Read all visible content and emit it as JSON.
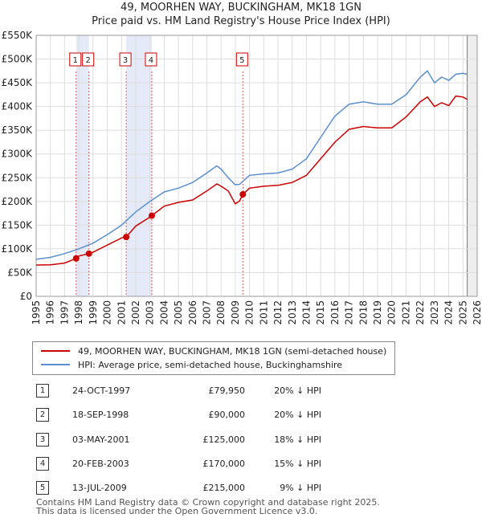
{
  "title": "49, MOORHEN WAY, BUCKINGHAM, MK18 1GN",
  "subtitle": "Price paid vs. HM Land Registry's House Price Index (HPI)",
  "chart_data": {
    "type": "line",
    "xlim": [
      1995,
      2026
    ],
    "ylim": [
      0,
      550000
    ],
    "y_ticks": [
      0,
      50000,
      100000,
      150000,
      200000,
      250000,
      300000,
      350000,
      400000,
      450000,
      500000,
      550000
    ],
    "y_tick_labels": [
      "£0",
      "£50K",
      "£100K",
      "£150K",
      "£200K",
      "£250K",
      "£300K",
      "£350K",
      "£400K",
      "£450K",
      "£500K",
      "£550K"
    ],
    "x_ticks": [
      1995,
      1996,
      1997,
      1998,
      1999,
      2000,
      2001,
      2002,
      2003,
      2004,
      2005,
      2006,
      2007,
      2008,
      2009,
      2010,
      2011,
      2012,
      2013,
      2014,
      2015,
      2016,
      2017,
      2018,
      2019,
      2020,
      2021,
      2022,
      2023,
      2024,
      2025,
      2026
    ],
    "x_tick_labels": [
      "1995",
      "1996",
      "1997",
      "1998",
      "1999",
      "2000",
      "2001",
      "2002",
      "2003",
      "2004",
      "2005",
      "2006",
      "2007",
      "2008",
      "2009",
      "2010",
      "2011",
      "2012",
      "2013",
      "2014",
      "2015",
      "2016",
      "2017",
      "2018",
      "2019",
      "2020",
      "2021",
      "2022",
      "2023",
      "2024",
      "2025",
      "2026"
    ],
    "grid": true,
    "series": [
      {
        "name": "49, MOORHEN WAY, BUCKINGHAM, MK18 1GN (semi-detached house)",
        "color": "#cc0000",
        "x": [
          1995,
          1996,
          1997,
          1997.81,
          1998,
          1998.71,
          1999,
          2000,
          2001,
          2001.33,
          2002,
          2003,
          2003.13,
          2004,
          2005,
          2006,
          2007,
          2007.7,
          2008,
          2008.5,
          2009,
          2009.3,
          2009.53,
          2010,
          2011,
          2012,
          2013,
          2014,
          2015,
          2016,
          2017,
          2018,
          2019,
          2020,
          2021,
          2022,
          2022.5,
          2023,
          2023.5,
          2024,
          2024.5,
          2025,
          2025.3
        ],
        "y": [
          66000,
          66500,
          70000,
          79950,
          85000,
          90000,
          93000,
          108000,
          123000,
          125000,
          148000,
          167000,
          170000,
          190000,
          198000,
          203000,
          222000,
          237000,
          232000,
          222000,
          195000,
          201000,
          215000,
          228000,
          232000,
          234000,
          240000,
          255000,
          290000,
          325000,
          352000,
          358000,
          355000,
          355000,
          378000,
          410000,
          420000,
          400000,
          408000,
          402000,
          422000,
          420000,
          415000
        ]
      },
      {
        "name": "HPI: Average price, semi-detached house, Buckinghamshire",
        "color": "#5b8fcf",
        "x": [
          1995,
          1996,
          1997,
          1998,
          1999,
          2000,
          2001,
          2002,
          2003,
          2004,
          2005,
          2006,
          2007,
          2007.7,
          2008,
          2008.5,
          2009,
          2009.3,
          2010,
          2011,
          2012,
          2013,
          2014,
          2015,
          2016,
          2017,
          2018,
          2019,
          2020,
          2021,
          2022,
          2022.5,
          2023,
          2023.5,
          2024,
          2024.5,
          2025,
          2025.3
        ],
        "y": [
          78000,
          82000,
          90000,
          100000,
          112000,
          130000,
          150000,
          178000,
          200000,
          220000,
          228000,
          240000,
          260000,
          275000,
          268000,
          250000,
          235000,
          236000,
          255000,
          258000,
          260000,
          268000,
          290000,
          335000,
          380000,
          405000,
          410000,
          405000,
          405000,
          425000,
          462000,
          475000,
          450000,
          462000,
          455000,
          468000,
          470000,
          468000
        ]
      }
    ],
    "sale_markers": [
      {
        "label": "1",
        "x": 1997.81,
        "y": 79950
      },
      {
        "label": "2",
        "x": 1998.71,
        "y": 90000
      },
      {
        "label": "3",
        "x": 2001.33,
        "y": 125000
      },
      {
        "label": "4",
        "x": 2003.13,
        "y": 170000
      },
      {
        "label": "5",
        "x": 2009.53,
        "y": 215000
      }
    ],
    "shaded_periods": [
      [
        1997.81,
        1998.71
      ],
      [
        2001.33,
        2003.13
      ]
    ],
    "forecast_from": 2025.3
  },
  "legend": [
    {
      "label": "49, MOORHEN WAY, BUCKINGHAM, MK18 1GN (semi-detached house)",
      "color": "#cc0000"
    },
    {
      "label": "HPI: Average price, semi-detached house, Buckinghamshire",
      "color": "#5b8fcf"
    }
  ],
  "sales": [
    {
      "num": "1",
      "date": "24-OCT-1997",
      "price": "£79,950",
      "hpi": "20% ↓ HPI"
    },
    {
      "num": "2",
      "date": "18-SEP-1998",
      "price": "£90,000",
      "hpi": "20% ↓ HPI"
    },
    {
      "num": "3",
      "date": "03-MAY-2001",
      "price": "£125,000",
      "hpi": "18% ↓ HPI"
    },
    {
      "num": "4",
      "date": "20-FEB-2003",
      "price": "£170,000",
      "hpi": "15% ↓ HPI"
    },
    {
      "num": "5",
      "date": "13-JUL-2009",
      "price": "£215,000",
      "hpi": "9% ↓ HPI"
    }
  ],
  "footer": {
    "line1": "Contains HM Land Registry data © Crown copyright and database right 2025.",
    "line2": "This data is licensed under the Open Government Licence v3.0."
  }
}
